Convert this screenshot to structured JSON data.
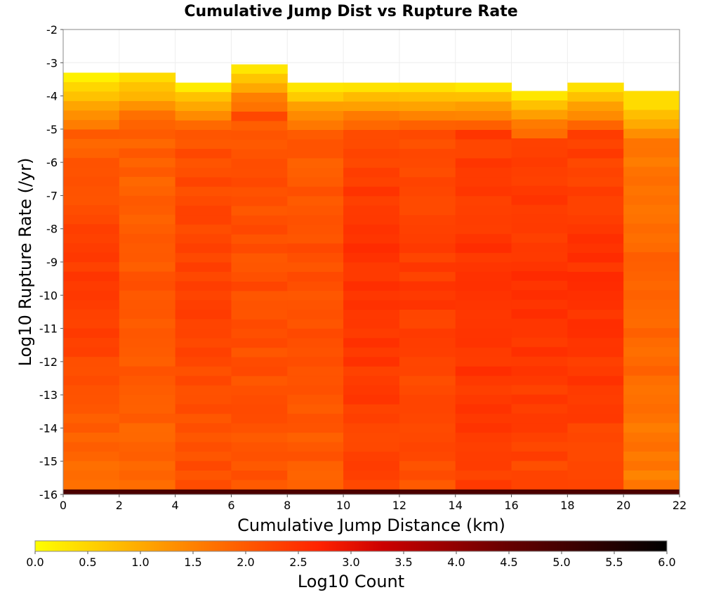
{
  "chart_data": {
    "type": "heatmap",
    "title": "Cumulative Jump Dist vs Rupture Rate",
    "xlabel": "Cumulative Jump Distance (km)",
    "ylabel": "Log10 Rupture Rate (/yr)",
    "xlim": [
      0,
      22
    ],
    "ylim": [
      -16,
      -2
    ],
    "x_bin_width": 2,
    "y_bin_width": 0.2857,
    "x_ticks": [
      "0",
      "2",
      "4",
      "6",
      "8",
      "10",
      "12",
      "14",
      "16",
      "18",
      "20",
      "22"
    ],
    "y_ticks": [
      "-2",
      "-3",
      "-4",
      "-5",
      "-6",
      "-7",
      "-8",
      "-9",
      "-10",
      "-11",
      "-12",
      "-13",
      "-14",
      "-15",
      "-16"
    ],
    "grid": true,
    "colorbar": {
      "label": "Log10 Count",
      "range": [
        0,
        6
      ],
      "ticks": [
        "0.0",
        "0.5",
        "1.0",
        "1.5",
        "2.0",
        "2.5",
        "3.0",
        "3.5",
        "4.0",
        "4.5",
        "5.0",
        "5.5",
        "6.0"
      ],
      "colors": [
        "#ffff00",
        "#ff9900",
        "#ff2200",
        "#cc0000",
        "#660000",
        "#000000"
      ]
    },
    "columns": [
      {
        "x_range": [
          0,
          2
        ],
        "top_rate": -3.3,
        "peak_count": 2.45,
        "edge_count": 1.5
      },
      {
        "x_range": [
          2,
          4
        ],
        "top_rate": -3.3,
        "peak_count": 2.05,
        "edge_count": 1.8
      },
      {
        "x_range": [
          4,
          6
        ],
        "top_rate": -3.6,
        "peak_count": 2.3,
        "edge_count": 2.0
      },
      {
        "x_range": [
          6,
          8
        ],
        "top_rate": -3.05,
        "peak_count": 2.15,
        "edge_count": 2.0
      },
      {
        "x_range": [
          8,
          10
        ],
        "top_rate": -3.6,
        "peak_count": 2.15,
        "edge_count": 1.9
      },
      {
        "x_range": [
          10,
          12
        ],
        "top_rate": -3.6,
        "peak_count": 2.55,
        "edge_count": 2.1
      },
      {
        "x_range": [
          12,
          14
        ],
        "top_rate": -3.6,
        "peak_count": 2.4,
        "edge_count": 2.0
      },
      {
        "x_range": [
          14,
          16
        ],
        "top_rate": -3.6,
        "peak_count": 2.55,
        "edge_count": 2.2
      },
      {
        "x_range": [
          16,
          18
        ],
        "top_rate": -3.85,
        "peak_count": 2.55,
        "edge_count": 2.1
      },
      {
        "x_range": [
          18,
          20
        ],
        "top_rate": -3.6,
        "peak_count": 2.55,
        "edge_count": 2.1
      },
      {
        "x_range": [
          20,
          22
        ],
        "top_rate": -3.85,
        "peak_count": 1.95,
        "edge_count": 1.4
      }
    ],
    "bottom_row": {
      "y_range": [
        -16,
        -15.85
      ],
      "count": 4.9
    }
  }
}
